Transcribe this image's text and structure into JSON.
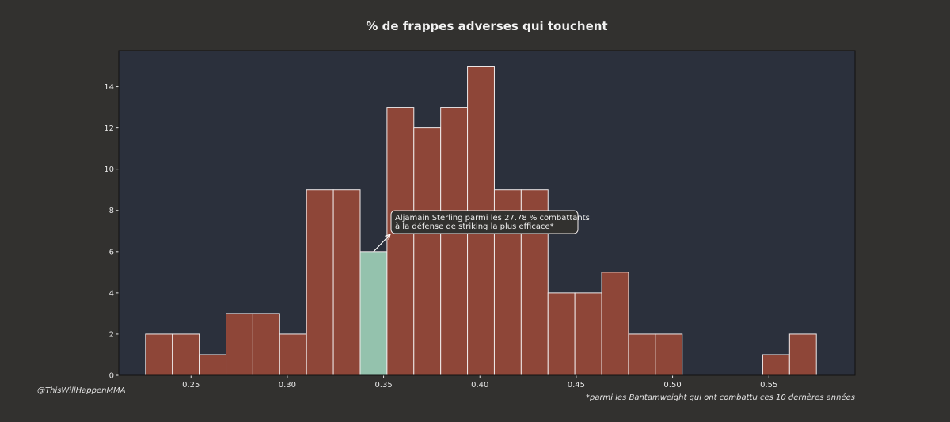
{
  "chart_data": {
    "type": "bar",
    "title": "% de frappes adverses qui touchent",
    "xlabel": "",
    "ylabel": "",
    "xlim": [
      0.2125,
      0.5947
    ],
    "ylim": [
      0,
      15.75
    ],
    "xticks": [
      0.25,
      0.3,
      0.35,
      0.4,
      0.45,
      0.5,
      0.55
    ],
    "xtick_labels": [
      "0.25",
      "0.30",
      "0.35",
      "0.40",
      "0.45",
      "0.50",
      "0.55"
    ],
    "yticks": [
      0,
      2,
      4,
      6,
      8,
      10,
      12,
      14
    ],
    "ytick_labels": [
      "0",
      "2",
      "4",
      "6",
      "8",
      "10",
      "12",
      "14"
    ],
    "bin_start": 0.2264,
    "bin_width": 0.01393,
    "values": [
      2,
      2,
      1,
      3,
      3,
      2,
      9,
      9,
      6,
      13,
      12,
      13,
      15,
      9,
      9,
      4,
      4,
      5,
      2,
      2,
      0,
      0,
      0,
      1,
      2
    ],
    "highlight_index": 8,
    "colors": {
      "background": "#32312f",
      "plot_background": "#2b303c",
      "bar": "#8e4638",
      "highlight": "#94c2ad",
      "bar_edge": "#f0eaea",
      "text": "#e6e6e6",
      "annotation_box": "#32312f"
    },
    "annotation": {
      "lines": [
        "Aljamain Sterling parmi les 27.78 % combattants",
        "à la défense de striking la plus efficace*"
      ]
    },
    "footnote_left": "@ThisWillHappenMMA",
    "footnote_right": "*parmi les Bantamweight qui ont combattu ces 10 dernères années"
  }
}
